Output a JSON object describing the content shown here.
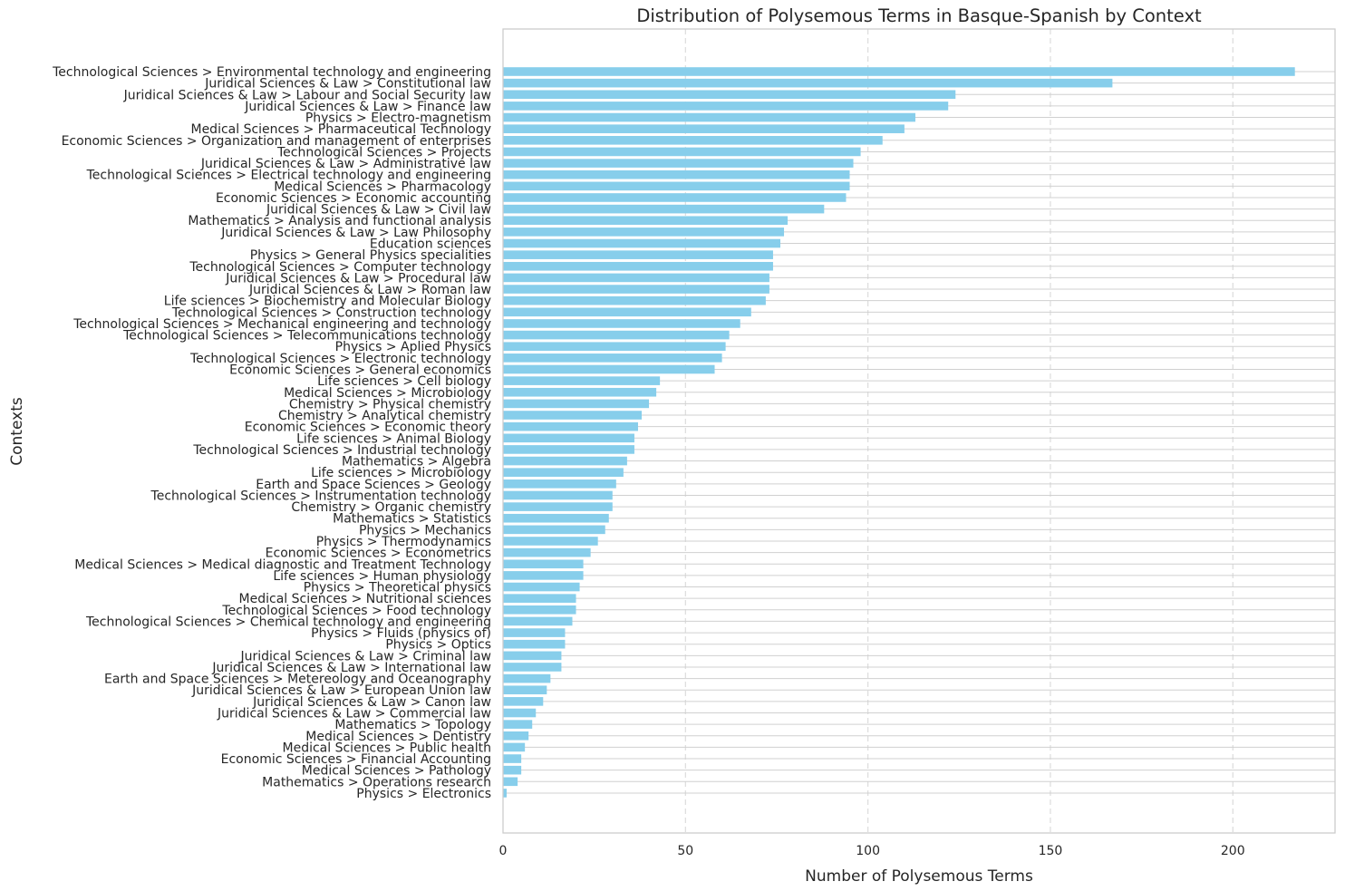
{
  "chart_data": {
    "type": "bar",
    "orientation": "horizontal",
    "title": "Distribution of Polysemous Terms in Basque-Spanish by Context",
    "xlabel": "Number of Polysemous Terms",
    "ylabel": "Contexts",
    "xlim": [
      0,
      228
    ],
    "xticks": [
      0,
      50,
      100,
      150,
      200
    ],
    "grid": "x-dashed",
    "bar_color": "#87ceeb",
    "categories": [
      "Technological Sciences > Environmental technology and engineering",
      "Juridical Sciences & Law > Constitutional law",
      "Juridical Sciences & Law > Labour and Social Security law",
      "Juridical Sciences & Law > Finance law",
      "Physics > Electro-magnetism",
      "Medical Sciences > Pharmaceutical Technology",
      "Economic Sciences > Organization and management of enterprises",
      "Technological Sciences > Projects",
      "Juridical Sciences & Law > Administrative law",
      "Technological Sciences > Electrical technology and engineering",
      "Medical Sciences > Pharmacology",
      "Economic Sciences > Economic accounting",
      "Juridical Sciences & Law > Civil law",
      "Mathematics > Analysis and functional analysis",
      "Juridical Sciences & Law > Law Philosophy",
      "Education sciences",
      "Physics > General Physics specialities",
      "Technological Sciences > Computer technology",
      "Juridical Sciences & Law > Procedural law",
      "Juridical Sciences & Law > Roman law",
      "Life sciences > Biochemistry and Molecular Biology",
      "Technological Sciences > Construction technology",
      "Technological Sciences > Mechanical engineering and technology",
      "Technological Sciences > Telecommunications technology",
      "Physics > Aplied Physics",
      "Technological Sciences > Electronic technology",
      "Economic Sciences > General economics",
      "Life sciences > Cell biology",
      "Medical Sciences > Microbiology",
      "Chemistry > Physical chemistry",
      "Chemistry > Analytical chemistry",
      "Economic Sciences > Economic theory",
      "Life sciences > Animal Biology",
      "Technological Sciences > Industrial technology",
      "Mathematics > Algebra",
      "Life sciences > Microbiology",
      "Earth and Space Sciences > Geology",
      "Technological Sciences > Instrumentation technology",
      "Chemistry > Organic chemistry",
      "Mathematics > Statistics",
      "Physics > Mechanics",
      "Physics > Thermodynamics",
      "Economic Sciences > Econometrics",
      "Medical Sciences > Medical diagnostic and Treatment Technology",
      "Life sciences > Human physiology",
      "Physics > Theoretical physics",
      "Medical Sciences > Nutritional sciences",
      "Technological Sciences > Food technology",
      "Technological Sciences > Chemical technology and engineering",
      "Physics > Fluids (physics of)",
      "Physics > Optics",
      "Juridical Sciences & Law > Criminal law",
      "Juridical Sciences & Law > International law",
      "Earth and Space Sciences > Metereology and Oceanography",
      "Juridical Sciences & Law > European Union law",
      "Juridical Sciences & Law > Canon law",
      "Juridical Sciences & Law > Commercial law",
      "Mathematics > Topology",
      "Medical Sciences > Dentistry",
      "Medical Sciences > Public health",
      "Economic Sciences > Financial Accounting",
      "Medical Sciences > Pathology",
      "Mathematics > Operations research",
      "Physics > Electronics"
    ],
    "values": [
      217,
      167,
      124,
      122,
      113,
      110,
      104,
      98,
      96,
      95,
      95,
      94,
      88,
      78,
      77,
      76,
      74,
      74,
      73,
      73,
      72,
      68,
      65,
      62,
      61,
      60,
      58,
      43,
      42,
      40,
      38,
      37,
      36,
      36,
      34,
      33,
      31,
      30,
      30,
      29,
      28,
      26,
      24,
      22,
      22,
      21,
      20,
      20,
      19,
      17,
      17,
      16,
      16,
      13,
      12,
      11,
      9,
      8,
      7,
      6,
      5,
      5,
      4,
      1
    ]
  }
}
